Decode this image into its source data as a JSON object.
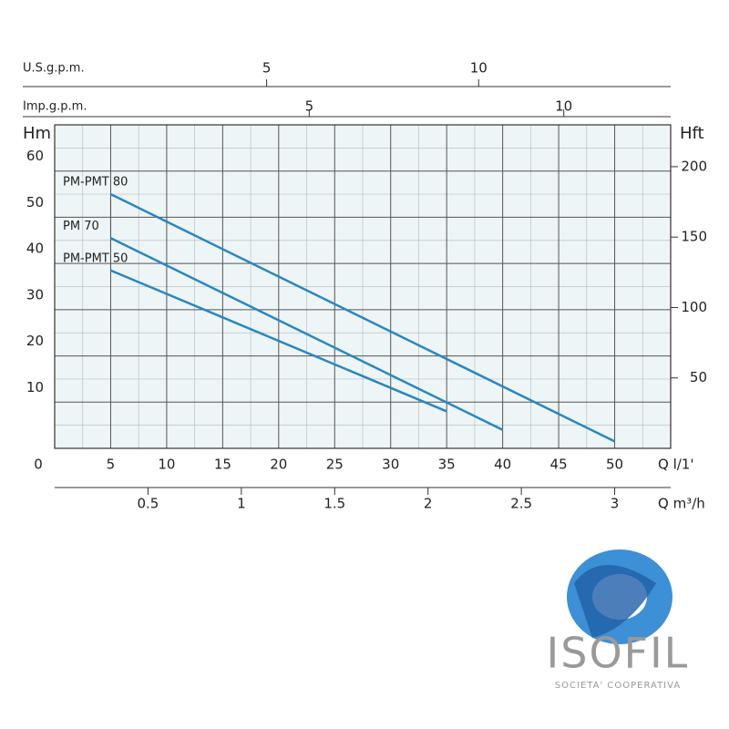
{
  "chart_data": {
    "type": "line",
    "xlabel": "Q l/1'",
    "xlim": [
      0,
      55
    ],
    "xticks": [
      0,
      5,
      10,
      15,
      20,
      25,
      30,
      35,
      40,
      45,
      50
    ],
    "ylabel": "Hm",
    "ylim": [
      0,
      70
    ],
    "yticks": [
      10,
      20,
      30,
      40,
      50,
      60
    ],
    "y2label": "Hft",
    "y2lim": [
      0,
      229.7
    ],
    "y2ticks": [
      50,
      100,
      150,
      200
    ],
    "grid": true,
    "background": "#eef5f7",
    "extra_x_axes": [
      {
        "label": "Q m³/h",
        "position": "bottom",
        "xlim": [
          0,
          3.3
        ],
        "xticks": [
          0.5,
          1,
          1.5,
          2,
          2.5,
          3
        ]
      },
      {
        "label": "Imp.g.p.m.",
        "position": "top",
        "xlim": [
          0,
          12.1
        ],
        "xticks": [
          5,
          10
        ]
      },
      {
        "label": "U.S.g.p.m.",
        "position": "top",
        "xlim": [
          0,
          14.53
        ],
        "xticks": [
          5,
          10
        ]
      }
    ],
    "series": [
      {
        "name": "PM-PMT 80",
        "color": "#2a86c0",
        "x": [
          5,
          50
        ],
        "values": [
          55,
          1.5
        ]
      },
      {
        "name": "PM 70",
        "color": "#2a86c0",
        "x": [
          5,
          40
        ],
        "values": [
          45.5,
          4
        ]
      },
      {
        "name": "PM-PMT 50",
        "color": "#2a86c0",
        "x": [
          5,
          35
        ],
        "values": [
          38.5,
          8
        ]
      }
    ]
  },
  "logo": {
    "name": "ISOFIL",
    "tagline": "SOCIETA' COOPERATIVA"
  }
}
